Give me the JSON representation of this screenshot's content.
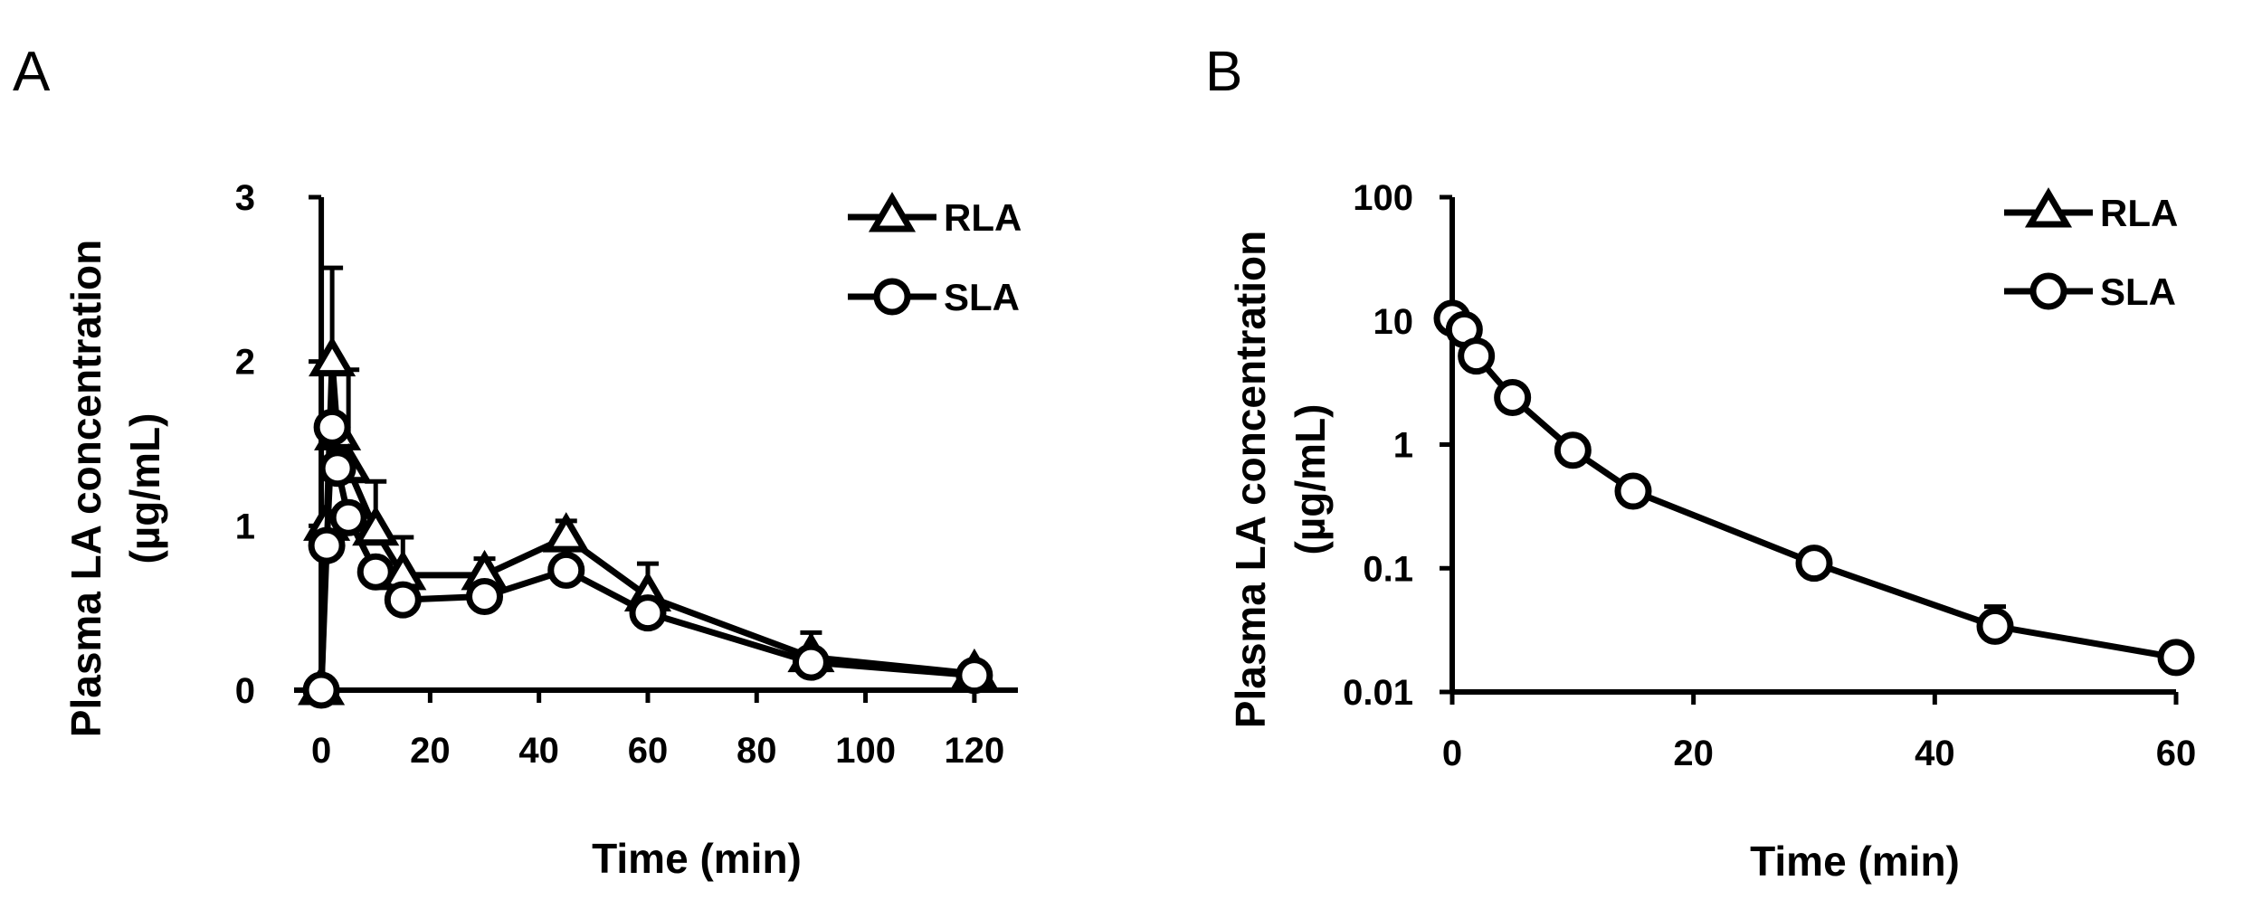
{
  "chart_data": [
    {
      "panel": "A",
      "type": "line",
      "xlabel": "Time (min)",
      "ylabel": "Plasma LA concentration",
      "ylabel_unit": "(µg/mL)",
      "xlim": [
        -5,
        128
      ],
      "ylim": [
        0,
        3
      ],
      "yscale": "linear",
      "xticks": [
        0,
        20,
        40,
        60,
        80,
        100,
        120
      ],
      "xtick_labels": [
        "0",
        "20",
        "40",
        "60",
        "80",
        "100",
        "120"
      ],
      "yticks": [
        0,
        1,
        2,
        3
      ],
      "ytick_labels": [
        "0",
        "1",
        "2",
        "3"
      ],
      "legend_position": "top-right",
      "series": [
        {
          "name": "RLA",
          "marker": "triangle",
          "x": [
            0,
            1,
            2,
            3,
            5,
            10,
            15,
            30,
            45,
            60,
            90,
            120
          ],
          "y": [
            0.0,
            1.0,
            2.0,
            1.55,
            1.35,
            0.97,
            0.7,
            0.7,
            0.93,
            0.57,
            0.2,
            0.1
          ],
          "err": [
            0,
            0,
            0.57,
            0,
            0.6,
            0.3,
            0.23,
            0.1,
            0.1,
            0.2,
            0.15,
            0.04
          ]
        },
        {
          "name": "SLA",
          "marker": "circle",
          "x": [
            0,
            1,
            2,
            3,
            5,
            10,
            15,
            30,
            45,
            60,
            90,
            120
          ],
          "y": [
            0.0,
            0.88,
            1.6,
            1.35,
            1.05,
            0.72,
            0.55,
            0.57,
            0.73,
            0.47,
            0.17,
            0.09
          ],
          "err": [
            0,
            0,
            0,
            0,
            0,
            0,
            0,
            0,
            0,
            0,
            0,
            0
          ]
        }
      ]
    },
    {
      "panel": "B",
      "type": "line",
      "xlabel": "Time (min)",
      "ylabel": "Plasma LA concentration",
      "ylabel_unit": "(µg/mL)",
      "xlim": [
        0,
        60
      ],
      "ylim": [
        0.01,
        100
      ],
      "yscale": "log",
      "xticks": [
        0,
        20,
        40,
        60
      ],
      "xtick_labels": [
        "0",
        "20",
        "40",
        "60"
      ],
      "yticks": [
        0.01,
        0.1,
        1,
        10,
        100
      ],
      "ytick_labels": [
        "0.01",
        "0.1",
        "1",
        "10",
        "100"
      ],
      "legend_position": "top-right",
      "series": [
        {
          "name": "RLA",
          "marker": "triangle",
          "x": [],
          "y": [],
          "err": []
        },
        {
          "name": "SLA",
          "marker": "circle",
          "x": [
            0,
            1,
            2,
            5,
            10,
            15,
            30,
            45,
            60
          ],
          "y": [
            10.5,
            8.5,
            5.2,
            2.4,
            0.9,
            0.42,
            0.11,
            0.034,
            0.019
          ],
          "err": [
            0,
            0,
            0,
            0,
            0,
            0,
            0.025,
            0.015,
            0
          ]
        }
      ]
    }
  ]
}
